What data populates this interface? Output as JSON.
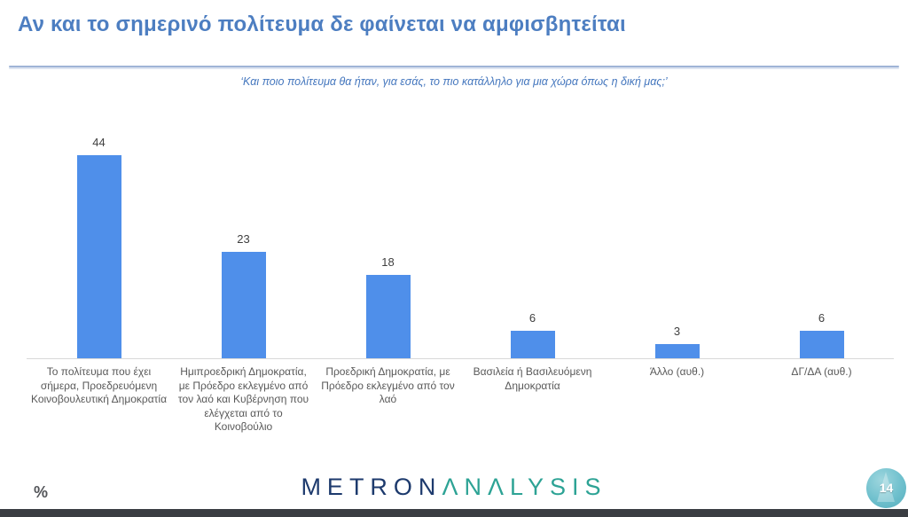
{
  "slide": {
    "title": "Αν και το σημερινό πολίτευμα δε φαίνεται να αμφισβητείται",
    "subtitle": "‘Και ποιο πολίτευμα θα ήταν, για εσάς, το πιο κατάλληλο για μια χώρα όπως η δική μας;’",
    "unit_label": "%",
    "logo": {
      "part1": "METRON",
      "part2": "ΛNΛLYSIS"
    },
    "page_number": "14"
  },
  "colors": {
    "title_blue": "#4d7ec1",
    "subtitle_blue": "#4577be",
    "bar_blue": "#4f8fea",
    "value_label": "#3f3f3f",
    "category_label": "#595959",
    "axis_line": "#d8d8d8",
    "divider": "#9fb4d6",
    "logo_navy": "#1d3a6d",
    "logo_teal": "#2da395",
    "footer_gray": "#54565a",
    "page_circle": "#6fc0cd",
    "bottom_bar": "#3a3d42"
  },
  "chart_data": {
    "type": "bar",
    "title": "Και ποιο πολίτευμα θα ήταν, για εσάς, το πιο κατάλληλο για μια χώρα όπως η δική μας;",
    "unit": "%",
    "categories": [
      "Το πολίτευμα που έχει σήμερα, Προεδρευόμενη Κοινοβουλευτική Δημοκρατία",
      "Ημιπροεδρική Δημοκρατία, με Πρόεδρο εκλεγμένο από τον λαό και Κυβέρνηση που ελέγχεται από το Κοινοβούλιο",
      "Προεδρική Δημοκρατία, με Πρόεδρο εκλεγμένο από τον λαό",
      "Βασιλεία ή Βασιλευόμενη Δημοκρατία",
      "Άλλο (αυθ.)",
      "ΔΓ/ΔΑ (αυθ.)"
    ],
    "values": [
      44,
      23,
      18,
      6,
      3,
      6
    ],
    "ylim": [
      0,
      52
    ],
    "gridlines": false,
    "legend": false,
    "data_labels": true,
    "bar_color": "#4f8fea"
  }
}
